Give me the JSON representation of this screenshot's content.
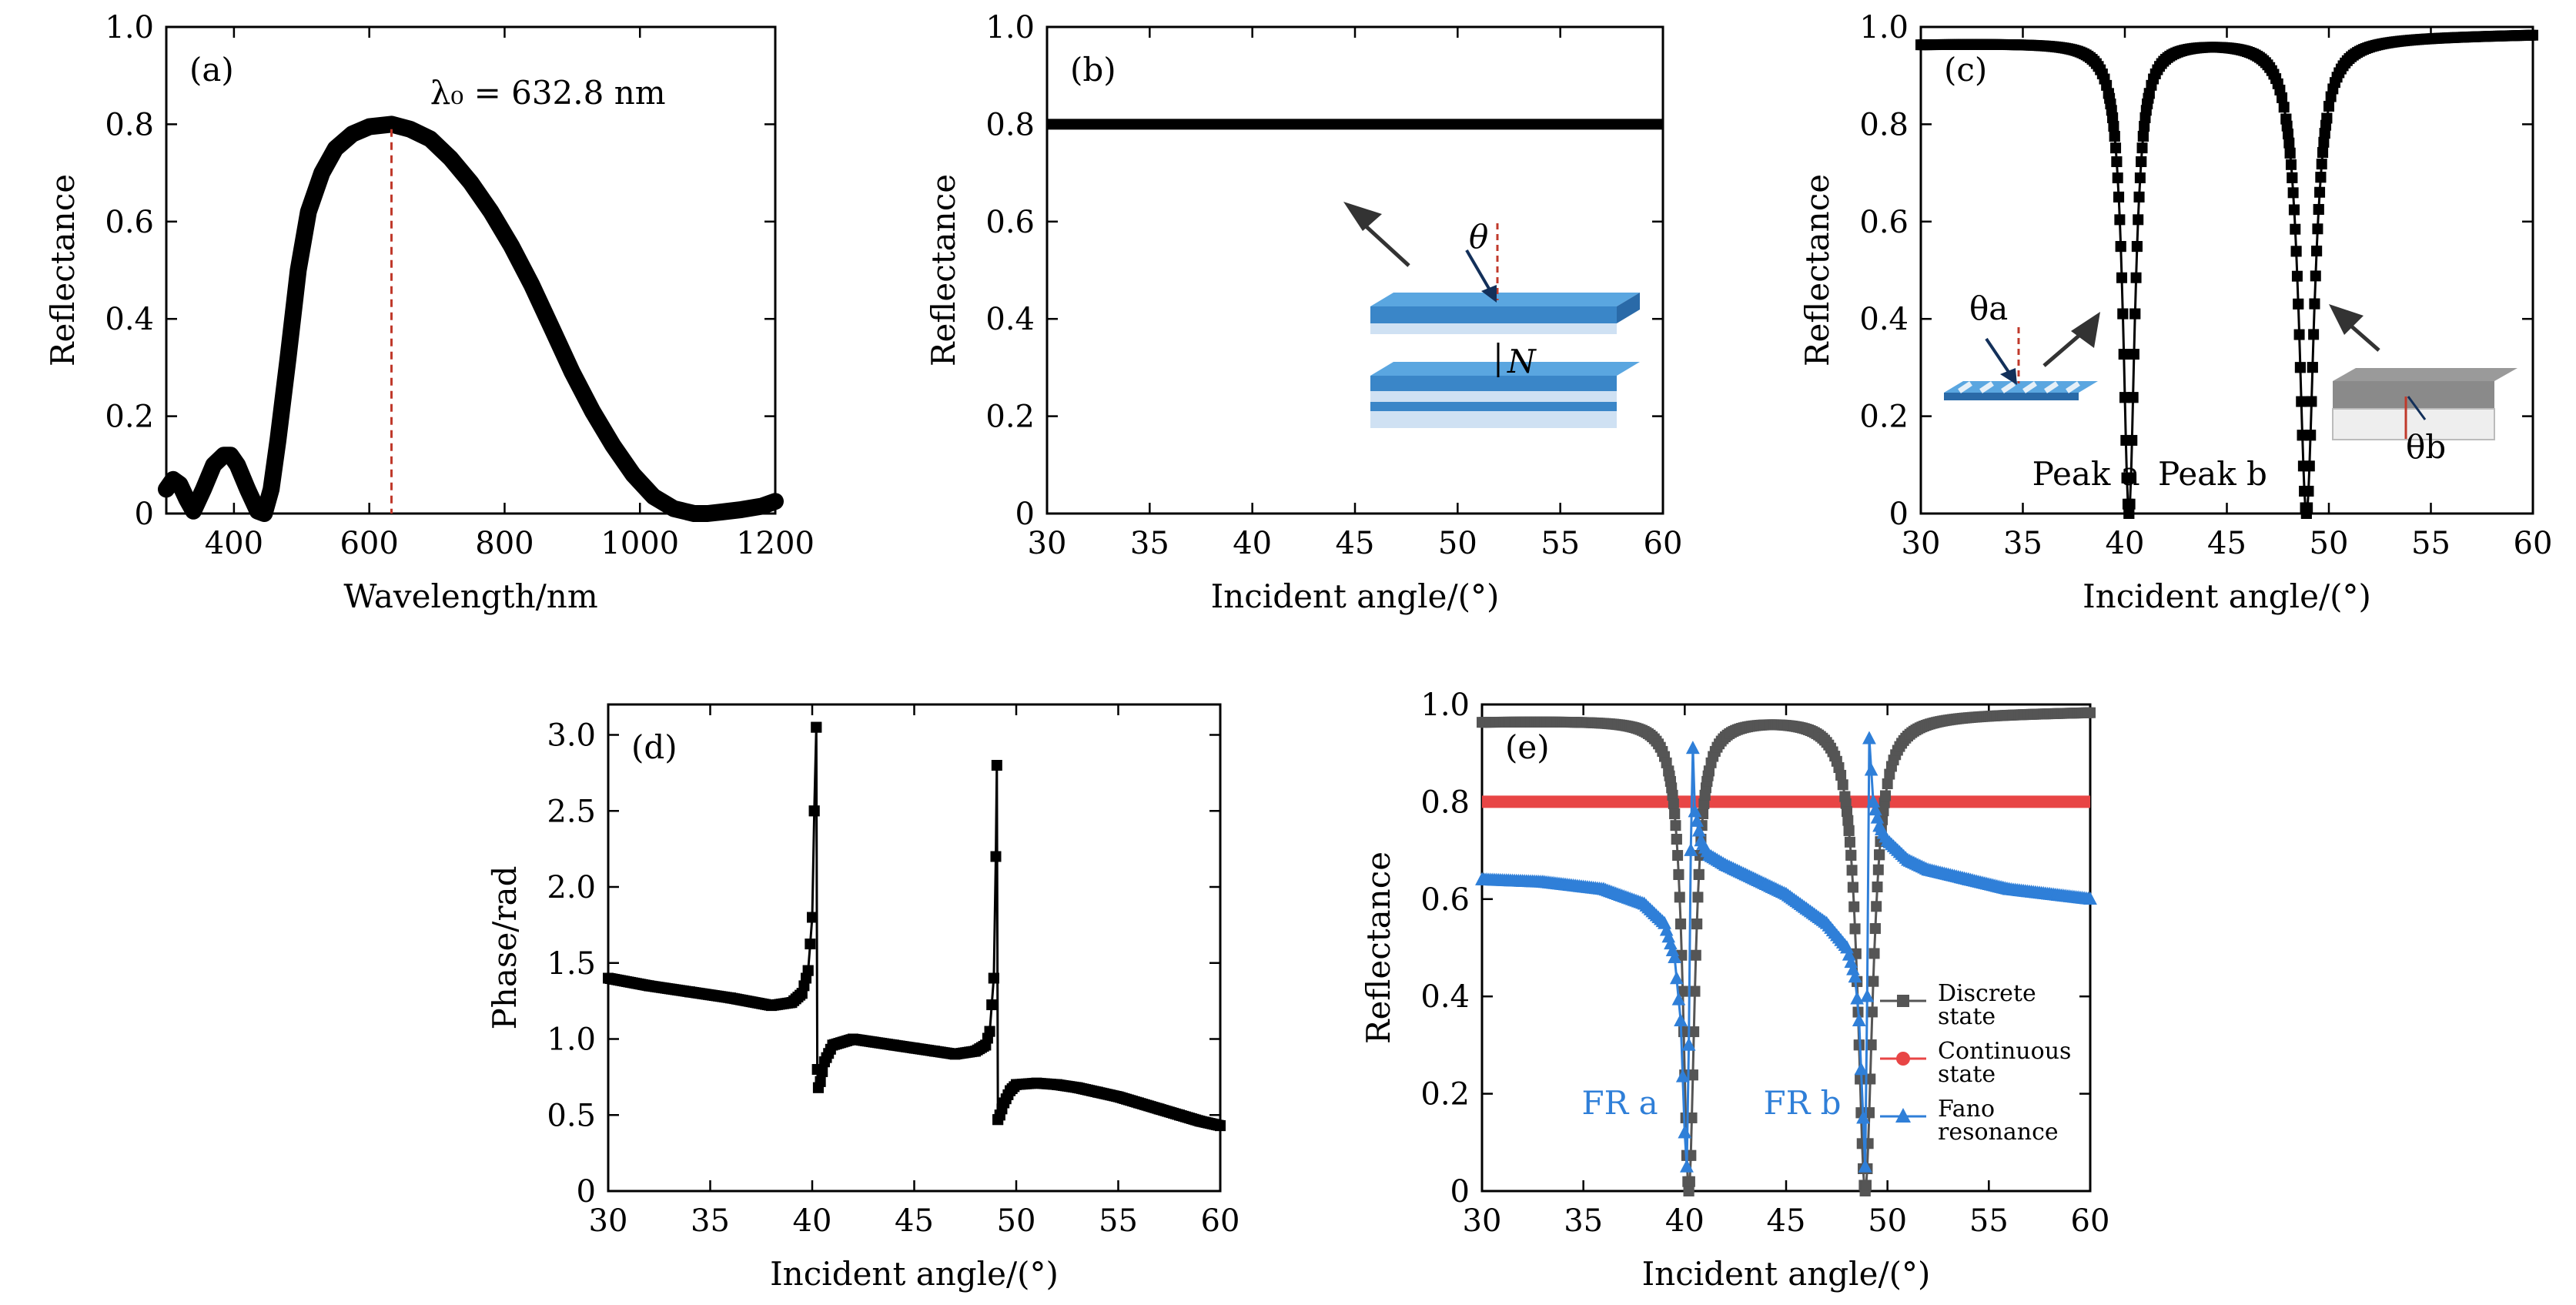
{
  "chart_data": [
    {
      "panel": "(a)",
      "type": "line",
      "xlabel": "Wavelength/nm",
      "ylabel": "Reflectance",
      "xlim": [
        300,
        1200
      ],
      "ylim": [
        0,
        1.0
      ],
      "xticks": [
        "400",
        "600",
        "800",
        "1000",
        "1200"
      ],
      "xtick_values": [
        400,
        600,
        800,
        1000,
        1200
      ],
      "yticks": [
        "0",
        "0.2",
        "0.4",
        "0.6",
        "0.8",
        "1.0"
      ],
      "ytick_values": [
        0,
        0.2,
        0.4,
        0.6,
        0.8,
        1.0
      ],
      "annotation": "λ₀ = 632.8 nm",
      "marker_line_x": 632.8,
      "series": [
        {
          "name": "Reflectance",
          "x": [
            300,
            310,
            320,
            330,
            340,
            355,
            370,
            385,
            395,
            405,
            420,
            435,
            445,
            455,
            465,
            480,
            495,
            510,
            530,
            550,
            575,
            600,
            632.8,
            660,
            690,
            720,
            750,
            780,
            810,
            840,
            870,
            900,
            930,
            960,
            990,
            1020,
            1050,
            1080,
            1100,
            1120,
            1150,
            1180,
            1200
          ],
          "y": [
            0.05,
            0.07,
            0.06,
            0.03,
            0.005,
            0.05,
            0.1,
            0.12,
            0.12,
            0.1,
            0.05,
            0.005,
            0.0,
            0.05,
            0.15,
            0.32,
            0.5,
            0.62,
            0.7,
            0.75,
            0.78,
            0.795,
            0.8,
            0.79,
            0.77,
            0.73,
            0.68,
            0.62,
            0.55,
            0.47,
            0.38,
            0.29,
            0.21,
            0.14,
            0.08,
            0.035,
            0.01,
            0.0,
            0.0,
            0.003,
            0.008,
            0.015,
            0.025
          ]
        }
      ]
    },
    {
      "panel": "(b)",
      "type": "line",
      "xlabel": "Incident angle/(°)",
      "ylabel": "Reflectance",
      "xlim": [
        30,
        60
      ],
      "ylim": [
        0,
        1.0
      ],
      "xticks": [
        "30",
        "35",
        "40",
        "45",
        "50",
        "55",
        "60"
      ],
      "xtick_values": [
        30,
        35,
        40,
        45,
        50,
        55,
        60
      ],
      "yticks": [
        "0",
        "0.2",
        "0.4",
        "0.6",
        "0.8",
        "1.0"
      ],
      "ytick_values": [
        0,
        0.2,
        0.4,
        0.6,
        0.8,
        1.0
      ],
      "inset_labels": [
        "θ",
        "N"
      ],
      "series": [
        {
          "name": "Reflectance",
          "x": [
            30,
            60
          ],
          "y": [
            0.8,
            0.8
          ]
        }
      ]
    },
    {
      "panel": "(c)",
      "type": "scatter",
      "xlabel": "Incident angle/(°)",
      "ylabel": "Reflectance",
      "xlim": [
        30,
        60
      ],
      "ylim": [
        0,
        1.0
      ],
      "xticks": [
        "30",
        "35",
        "40",
        "45",
        "50",
        "55",
        "60"
      ],
      "xtick_values": [
        30,
        35,
        40,
        45,
        50,
        55,
        60
      ],
      "yticks": [
        "0",
        "0.2",
        "0.4",
        "0.6",
        "0.8",
        "1.0"
      ],
      "ytick_values": [
        0,
        0.2,
        0.4,
        0.6,
        0.8,
        1.0
      ],
      "annotations": [
        "Peak a",
        "Peak b"
      ],
      "inset_labels": [
        "θa",
        "θb"
      ],
      "dip_model": {
        "baseline_start": 0.965,
        "baseline_end": 0.985,
        "dips": [
          {
            "center": 40.2,
            "width": 0.35
          },
          {
            "center": 48.9,
            "width": 0.45
          }
        ]
      }
    },
    {
      "panel": "(d)",
      "type": "scatter",
      "xlabel": "Incident angle/(°)",
      "ylabel": "Phase/rad",
      "xlim": [
        30,
        60
      ],
      "ylim": [
        0,
        3.2
      ],
      "xticks": [
        "30",
        "35",
        "40",
        "45",
        "50",
        "55",
        "60"
      ],
      "xtick_values": [
        30,
        35,
        40,
        45,
        50,
        55,
        60
      ],
      "yticks": [
        "0",
        "0.5",
        "1.0",
        "1.5",
        "2.0",
        "2.5",
        "3.0"
      ],
      "ytick_values": [
        0,
        0.5,
        1.0,
        1.5,
        2.0,
        2.5,
        3.0
      ],
      "series": [
        {
          "name": "Phase",
          "x": [
            30,
            32,
            34,
            36,
            38,
            39,
            39.5,
            39.8,
            40.0,
            40.1,
            40.2,
            40.25,
            40.3,
            40.4,
            40.6,
            41,
            42,
            43,
            44,
            45,
            46,
            47,
            48,
            48.5,
            48.7,
            48.9,
            49.0,
            49.05,
            49.1,
            49.2,
            49.4,
            49.7,
            50,
            51,
            52,
            53,
            54,
            55,
            56,
            57,
            58,
            59,
            60
          ],
          "y": [
            1.4,
            1.35,
            1.31,
            1.27,
            1.22,
            1.24,
            1.3,
            1.45,
            1.8,
            2.5,
            3.05,
            0.8,
            0.68,
            0.72,
            0.85,
            0.96,
            1.0,
            0.98,
            0.96,
            0.94,
            0.92,
            0.9,
            0.92,
            0.96,
            1.05,
            1.4,
            2.2,
            2.8,
            0.47,
            0.5,
            0.58,
            0.66,
            0.7,
            0.71,
            0.7,
            0.68,
            0.65,
            0.62,
            0.58,
            0.54,
            0.5,
            0.46,
            0.43
          ]
        }
      ]
    },
    {
      "panel": "(e)",
      "type": "scatter",
      "xlabel": "Incident angle/(°)",
      "ylabel": "Reflectance",
      "xlim": [
        30,
        60
      ],
      "ylim": [
        0,
        1.0
      ],
      "xticks": [
        "30",
        "35",
        "40",
        "45",
        "50",
        "55",
        "60"
      ],
      "xtick_values": [
        30,
        35,
        40,
        45,
        50,
        55,
        60
      ],
      "yticks": [
        "0",
        "0.2",
        "0.4",
        "0.6",
        "0.8",
        "1.0"
      ],
      "ytick_values": [
        0,
        0.2,
        0.4,
        0.6,
        0.8,
        1.0
      ],
      "annotations": [
        "FR a",
        "FR b"
      ],
      "legend": [
        {
          "label": [
            "Discrete",
            "state"
          ],
          "color": "#555555",
          "marker": "square"
        },
        {
          "label": [
            "Continuous",
            "state"
          ],
          "color": "#e84545",
          "marker": "circle"
        },
        {
          "label": [
            "Fano",
            "resonance"
          ],
          "color": "#2f7fd8",
          "marker": "triangle"
        }
      ],
      "series_models": {
        "discrete": {
          "baseline_start": 0.965,
          "baseline_end": 0.985,
          "dips": [
            {
              "center": 40.2,
              "width": 0.35
            },
            {
              "center": 48.9,
              "width": 0.45
            }
          ]
        },
        "continuous": {
          "value": 0.8
        },
        "fano": {
          "x": [
            30,
            33,
            36,
            38,
            39,
            39.5,
            39.8,
            40.0,
            40.1,
            40.2,
            40.3,
            40.4,
            40.5,
            40.8,
            41.2,
            42,
            43,
            44,
            45,
            46,
            47,
            48,
            48.4,
            48.6,
            48.8,
            48.9,
            49.0,
            49.1,
            49.3,
            49.6,
            50,
            51,
            52,
            54,
            56,
            58,
            60
          ],
          "y": [
            0.64,
            0.635,
            0.62,
            0.59,
            0.55,
            0.48,
            0.35,
            0.12,
            0.05,
            0.3,
            0.7,
            0.91,
            0.78,
            0.72,
            0.69,
            0.67,
            0.65,
            0.63,
            0.61,
            0.58,
            0.55,
            0.5,
            0.44,
            0.35,
            0.15,
            0.05,
            0.4,
            0.93,
            0.8,
            0.75,
            0.72,
            0.68,
            0.66,
            0.64,
            0.62,
            0.61,
            0.6
          ]
        }
      }
    }
  ]
}
